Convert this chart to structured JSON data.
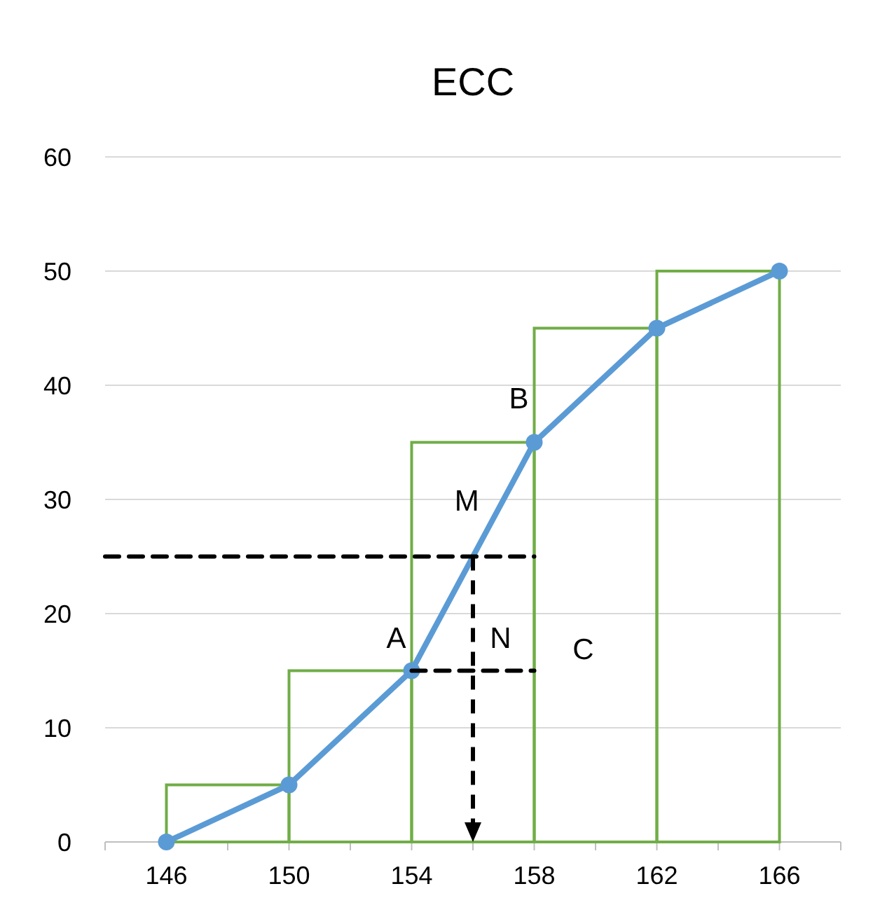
{
  "chart_data": {
    "type": "line",
    "title": "ECC",
    "xlim": [
      144,
      168
    ],
    "ylim": [
      0,
      60
    ],
    "xticks": [
      {
        "value": 144,
        "label": null
      },
      146,
      {
        "value": 148,
        "label": null
      },
      150,
      {
        "value": 152,
        "label": null
      },
      154,
      {
        "value": 156,
        "label": null
      },
      158,
      {
        "value": 160,
        "label": null
      },
      162,
      {
        "value": 164,
        "label": null
      },
      166,
      {
        "value": 168,
        "label": null
      }
    ],
    "yticks": [
      0,
      10,
      20,
      30,
      40,
      50,
      60
    ],
    "grid": "y",
    "series": [
      {
        "type": "histogram",
        "color": "#70ad47",
        "bins": [
          146,
          150,
          154,
          158,
          162,
          166
        ],
        "values": [
          5,
          15,
          35,
          45,
          50
        ]
      },
      {
        "color": "#5b9bd5",
        "marker": "circle",
        "line_style": "solid",
        "x": [
          146,
          150,
          154,
          158,
          162,
          166
        ],
        "values": [
          0,
          5,
          15,
          35,
          45,
          50
        ]
      },
      {
        "color": "#000000",
        "marker": "none",
        "line_style": "dashed",
        "x": [
          144,
          158
        ],
        "values": [
          25,
          25
        ]
      },
      {
        "color": "#000000",
        "marker": "none",
        "line_style": "dashed",
        "x": [
          154,
          158
        ],
        "values": [
          15,
          15
        ]
      }
    ],
    "annotations": [
      "A",
      "B",
      "M",
      "N",
      "C"
    ]
  }
}
